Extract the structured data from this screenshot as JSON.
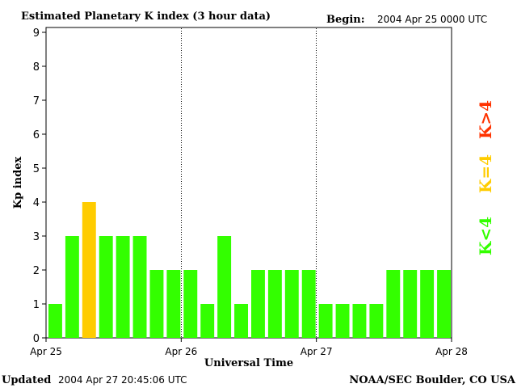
{
  "chart_data": {
    "type": "bar",
    "title": "Estimated Planetary K index (3 hour data)",
    "begin_label": "Begin:",
    "begin_value": "2004 Apr 25 0000 UTC",
    "ylabel": "Kp index",
    "xlabel": "Universal Time",
    "ylim": [
      0,
      9
    ],
    "yticks": [
      "0",
      "1",
      "2",
      "3",
      "4",
      "5",
      "6",
      "7",
      "8",
      "9"
    ],
    "xticks": [
      "Apr 25",
      "Apr 26",
      "Apr 27",
      "Apr 28"
    ],
    "values": [
      1,
      3,
      4,
      3,
      3,
      3,
      2,
      2,
      2,
      1,
      3,
      1,
      2,
      2,
      2,
      2,
      1,
      1,
      1,
      1,
      2,
      2,
      2,
      2
    ],
    "legend": [
      {
        "label": "K<4",
        "color": "#33ff00"
      },
      {
        "label": "K=4",
        "color": "#ffcc00"
      },
      {
        "label": "K>4",
        "color": "#ff3300"
      }
    ],
    "colors": {
      "below": "#33ff00",
      "equal": "#ffcc00",
      "above": "#ff3300"
    }
  },
  "footer": {
    "updated_label": "Updated",
    "updated_value": "2004 Apr 27 20:45:06 UTC",
    "credit": "NOAA/SEC Boulder, CO USA"
  }
}
